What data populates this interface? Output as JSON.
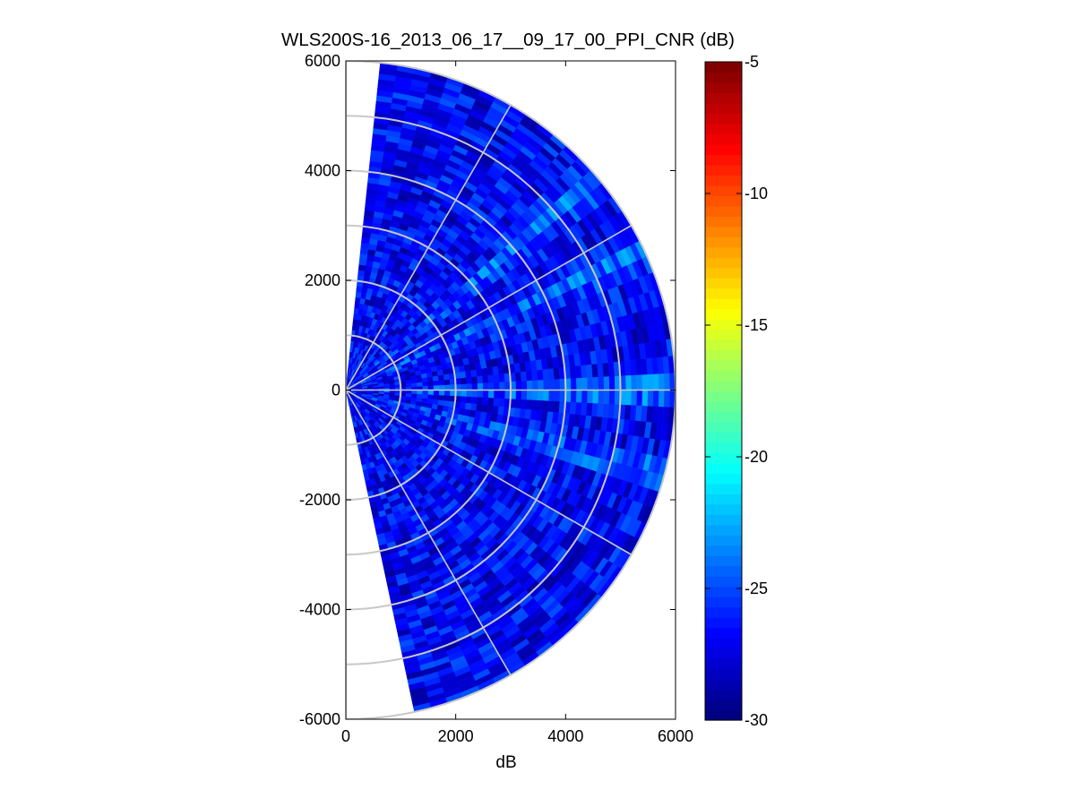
{
  "chart_data": {
    "type": "heatmap",
    "subtype": "polar-ppi",
    "title": "WLS200S-16_2013_06_17__09_17_00_PPI_CNR (dB)",
    "xlabel": "dB",
    "ylabel": "",
    "xlim": [
      0,
      6000
    ],
    "ylim": [
      -6000,
      6000
    ],
    "x_ticks": [
      0,
      2000,
      4000,
      6000
    ],
    "y_ticks": [
      -6000,
      -4000,
      -2000,
      0,
      2000,
      4000,
      6000
    ],
    "x_tick_labels": [
      "0",
      "2000",
      "4000",
      "6000"
    ],
    "y_tick_labels": [
      "-6000",
      "-4000",
      "-2000",
      "0",
      "2000",
      "4000",
      "6000"
    ],
    "colorbar": {
      "range": [
        -30,
        -5
      ],
      "ticks": [
        -30,
        -25,
        -20,
        -15,
        -10,
        -5
      ],
      "tick_labels": [
        "-30",
        "-25",
        "-20",
        "-15",
        "-10",
        "-5"
      ],
      "colormap": "jet"
    },
    "grid": true,
    "polar_grid": {
      "range_rings_m": [
        1000,
        2000,
        3000,
        4000,
        5000,
        6000
      ],
      "azimuth_spokes_deg": [
        -60,
        -30,
        0,
        30,
        60
      ],
      "grid_color": "#c8c8c8"
    },
    "scan": {
      "max_range_m": 6000,
      "sector_deg": [
        -78,
        84
      ],
      "azimuth_step_deg": 3,
      "range_gate_m": 100
    },
    "data_summary": {
      "typical_cnr_db": -27,
      "min_cnr_db": -30,
      "max_cnr_db": -22.5,
      "enhanced_beams_deg": [
        0,
        25,
        40,
        -15
      ]
    }
  }
}
